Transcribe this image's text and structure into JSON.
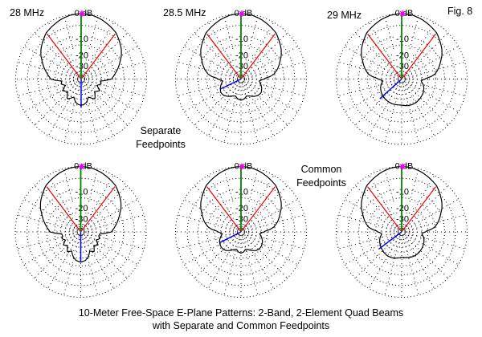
{
  "figure_label": "Fig. 8",
  "row_labels": {
    "separate": [
      "Separate",
      "Feedpoints"
    ],
    "common": [
      "Common",
      "Feedpoints"
    ]
  },
  "caption": [
    "10-Meter Free-Space E-Plane Patterns: 2-Band, 2-Element Quad Beams",
    "with Separate and Common Feedpoints"
  ],
  "colors": {
    "trace": "#000000",
    "grid": "#000000",
    "main_axis": "#008000",
    "cursor": "#0000ff",
    "beamwidth": "#ee0000",
    "marker": "#ee00ee",
    "label_bg": "#ffffff",
    "text": "#000000"
  },
  "grid": {
    "ring_dB": [
      0,
      -5,
      -10,
      -15,
      -20,
      -25,
      -30,
      -35,
      -40,
      -45,
      -50
    ],
    "spoke_step_deg": 15,
    "ring_labels": [
      {
        "dB": 0,
        "text": "0 dB"
      },
      {
        "dB": -10,
        "text": "-10"
      },
      {
        "dB": -20,
        "text": "-20"
      },
      {
        "dB": -30,
        "text": "-30"
      }
    ],
    "scale_entries": [
      [
        0,
        1.0
      ],
      [
        -5,
        0.82
      ],
      [
        -10,
        0.655
      ],
      [
        -15,
        0.52
      ],
      [
        -20,
        0.4
      ],
      [
        -25,
        0.31
      ],
      [
        -30,
        0.235
      ],
      [
        -35,
        0.17
      ],
      [
        -40,
        0.12
      ],
      [
        -45,
        0.08
      ],
      [
        -50,
        0.05
      ],
      [
        -60,
        0.02
      ]
    ]
  },
  "chart_data": {
    "type": "line",
    "projection": "polar",
    "units": "dB relative to max gain",
    "angle_convention": "0 deg = boresight (up), clockwise positive",
    "plots": [
      {
        "id": "28mhz-separate",
        "title": "28 MHz",
        "feedpoints": "Separate",
        "center": [
          101,
          98.5
        ],
        "radius": 81.5,
        "mirror": true,
        "beamwidth_marker": {
          "angles_deg": [
            -37,
            37
          ],
          "r_frac": 0.866
        },
        "cursor": {
          "angle_deg": 180,
          "r_frac": 0.44
        },
        "pattern": [
          [
            0,
            0
          ],
          [
            10,
            -0.3
          ],
          [
            20,
            -1.2
          ],
          [
            30,
            -2.4
          ],
          [
            37,
            -3.2
          ],
          [
            45,
            -4.9
          ],
          [
            53,
            -6.6
          ],
          [
            60,
            -8.4
          ],
          [
            68,
            -10.8
          ],
          [
            75,
            -13
          ],
          [
            81,
            -14.8
          ],
          [
            87,
            -16.6
          ],
          [
            90,
            -17.3
          ],
          [
            93,
            -21
          ],
          [
            96,
            -26
          ],
          [
            104,
            -24.8
          ],
          [
            112,
            -28.5
          ],
          [
            122,
            -23.6
          ],
          [
            133,
            -27
          ],
          [
            145,
            -21.8
          ],
          [
            158,
            -25.8
          ],
          [
            167,
            -22
          ],
          [
            174,
            -20.4
          ],
          [
            180,
            -20
          ]
        ]
      },
      {
        "id": "28p5mhz-separate",
        "title": "28.5 MHz",
        "feedpoints": "Separate",
        "center": [
          300,
          98.5
        ],
        "radius": 81.5,
        "mirror": true,
        "beamwidth_marker": {
          "angles_deg": [
            -37,
            37
          ],
          "r_frac": 0.866
        },
        "cursor": {
          "angle_deg": 244,
          "r_frac": 0.36
        },
        "pattern": [
          [
            0,
            0
          ],
          [
            10,
            -0.3
          ],
          [
            20,
            -1.2
          ],
          [
            30,
            -2.4
          ],
          [
            37,
            -3.2
          ],
          [
            45,
            -4.9
          ],
          [
            53,
            -6.6
          ],
          [
            60,
            -8.4
          ],
          [
            68,
            -10.8
          ],
          [
            75,
            -13
          ],
          [
            81,
            -15.3
          ],
          [
            85,
            -18
          ],
          [
            88,
            -21.5
          ],
          [
            90,
            -22.5
          ],
          [
            92,
            -24.5
          ],
          [
            96,
            -27
          ],
          [
            104,
            -25
          ],
          [
            114,
            -23
          ],
          [
            124,
            -21.6
          ],
          [
            134,
            -22.2
          ],
          [
            144,
            -24
          ],
          [
            154,
            -26.5
          ],
          [
            162,
            -27.5
          ],
          [
            171,
            -25.2
          ],
          [
            180,
            -24.2
          ]
        ]
      },
      {
        "id": "29mhz-separate",
        "title": "29 MHz",
        "feedpoints": "Separate",
        "center": [
          500,
          98.5
        ],
        "radius": 81.5,
        "mirror": false,
        "beamwidth_marker": {
          "angles_deg": [
            -37,
            37
          ],
          "r_frac": 0.866
        },
        "cursor": {
          "angle_deg": 228,
          "r_frac": 0.45
        },
        "pattern": [
          [
            -180,
            -20
          ],
          [
            -176,
            -20.1
          ],
          [
            -169,
            -20
          ],
          [
            -159,
            -19.8
          ],
          [
            -147,
            -20
          ],
          [
            -135,
            -20.6
          ],
          [
            -123,
            -21.6
          ],
          [
            -113,
            -22.8
          ],
          [
            -104,
            -24.3
          ],
          [
            -96,
            -26.5
          ],
          [
            -92,
            -24.3
          ],
          [
            -90,
            -22.3
          ],
          [
            -88,
            -21
          ],
          [
            -85,
            -17.8
          ],
          [
            -81,
            -15
          ],
          [
            -75,
            -13
          ],
          [
            -68,
            -10.8
          ],
          [
            -60,
            -8.4
          ],
          [
            -53,
            -6.6
          ],
          [
            -45,
            -4.9
          ],
          [
            -37,
            -3.2
          ],
          [
            -30,
            -2.4
          ],
          [
            -20,
            -1.2
          ],
          [
            -10,
            -0.3
          ],
          [
            0,
            0
          ],
          [
            10,
            -0.3
          ],
          [
            20,
            -1.2
          ],
          [
            30,
            -2.4
          ],
          [
            37,
            -3.2
          ],
          [
            45,
            -4.9
          ],
          [
            53,
            -6.6
          ],
          [
            60,
            -8.4
          ],
          [
            68,
            -10.8
          ],
          [
            75,
            -13
          ],
          [
            81,
            -15
          ],
          [
            85,
            -17.8
          ],
          [
            88,
            -21
          ],
          [
            90,
            -22.3
          ],
          [
            92,
            -24
          ],
          [
            96,
            -25.8
          ],
          [
            104,
            -23.4
          ],
          [
            113,
            -21.8
          ],
          [
            123,
            -20.5
          ],
          [
            135,
            -19.7
          ],
          [
            147,
            -19.2
          ],
          [
            159,
            -19.1
          ],
          [
            169,
            -19.4
          ],
          [
            176,
            -19.8
          ],
          [
            180,
            -20
          ]
        ]
      },
      {
        "id": "28mhz-common",
        "title": "28 MHz",
        "feedpoints": "Common",
        "center": [
          100.5,
          289
        ],
        "radius": 81.5,
        "mirror": true,
        "beamwidth_marker": {
          "angles_deg": [
            -37,
            37
          ],
          "r_frac": 0.866
        },
        "cursor": {
          "angle_deg": 180,
          "r_frac": 0.455
        },
        "pattern": [
          [
            0,
            0
          ],
          [
            10,
            -0.3
          ],
          [
            20,
            -1.2
          ],
          [
            30,
            -2.4
          ],
          [
            37,
            -3.2
          ],
          [
            45,
            -4.9
          ],
          [
            53,
            -6.6
          ],
          [
            60,
            -8.4
          ],
          [
            68,
            -10.8
          ],
          [
            75,
            -12.9
          ],
          [
            81,
            -14.6
          ],
          [
            87,
            -16.4
          ],
          [
            90,
            -17.1
          ],
          [
            93,
            -21
          ],
          [
            96,
            -26.2
          ],
          [
            103,
            -26.8
          ],
          [
            110,
            -25.4
          ],
          [
            118,
            -28
          ],
          [
            127,
            -23.8
          ],
          [
            136,
            -26.3
          ],
          [
            146,
            -22
          ],
          [
            155,
            -24.3
          ],
          [
            163,
            -20.2
          ],
          [
            171,
            -18.2
          ],
          [
            180,
            -17.4
          ]
        ]
      },
      {
        "id": "28p5mhz-common",
        "title": "28.5 MHz",
        "feedpoints": "Common",
        "center": [
          300,
          289
        ],
        "radius": 81.5,
        "mirror": true,
        "beamwidth_marker": {
          "angles_deg": [
            -37,
            37
          ],
          "r_frac": 0.866
        },
        "cursor": {
          "angle_deg": 243,
          "r_frac": 0.36
        },
        "pattern": [
          [
            0,
            0
          ],
          [
            10,
            -0.3
          ],
          [
            20,
            -1.2
          ],
          [
            30,
            -2.4
          ],
          [
            37,
            -3.2
          ],
          [
            45,
            -4.9
          ],
          [
            53,
            -6.6
          ],
          [
            60,
            -8.4
          ],
          [
            68,
            -10.8
          ],
          [
            75,
            -13
          ],
          [
            81,
            -15.3
          ],
          [
            85,
            -18
          ],
          [
            88,
            -21.5
          ],
          [
            90,
            -22.6
          ],
          [
            92,
            -24.5
          ],
          [
            96,
            -26.5
          ],
          [
            104,
            -24.3
          ],
          [
            114,
            -22.3
          ],
          [
            124,
            -21.2
          ],
          [
            132,
            -21
          ],
          [
            141,
            -21.9
          ],
          [
            150,
            -24
          ],
          [
            158,
            -26.3
          ],
          [
            166,
            -27.3
          ],
          [
            173,
            -25
          ],
          [
            180,
            -24.2
          ]
        ]
      },
      {
        "id": "29mhz-common",
        "title": "29 MHz",
        "feedpoints": "Common",
        "center": [
          500,
          289
        ],
        "radius": 81.5,
        "mirror": false,
        "beamwidth_marker": {
          "angles_deg": [
            -37,
            37
          ],
          "r_frac": 0.866
        },
        "cursor": {
          "angle_deg": 233,
          "r_frac": 0.44
        },
        "pattern": [
          [
            -180,
            -20.6
          ],
          [
            -172,
            -19.9
          ],
          [
            -162,
            -19.2
          ],
          [
            -150,
            -18.9
          ],
          [
            -138,
            -19.4
          ],
          [
            -126,
            -20.4
          ],
          [
            -114,
            -21.8
          ],
          [
            -104,
            -23.4
          ],
          [
            -96,
            -25.3
          ],
          [
            -92,
            -23.8
          ],
          [
            -90,
            -22
          ],
          [
            -88,
            -21
          ],
          [
            -85,
            -17.8
          ],
          [
            -81,
            -15
          ],
          [
            -75,
            -13
          ],
          [
            -68,
            -10.8
          ],
          [
            -60,
            -8.4
          ],
          [
            -53,
            -6.6
          ],
          [
            -45,
            -4.9
          ],
          [
            -37,
            -3.2
          ],
          [
            -30,
            -2.4
          ],
          [
            -20,
            -1.2
          ],
          [
            -10,
            -0.3
          ],
          [
            0,
            0
          ],
          [
            10,
            -0.3
          ],
          [
            20,
            -1.2
          ],
          [
            30,
            -2.4
          ],
          [
            37,
            -3.2
          ],
          [
            45,
            -4.9
          ],
          [
            53,
            -6.6
          ],
          [
            60,
            -8.4
          ],
          [
            68,
            -10.8
          ],
          [
            75,
            -13
          ],
          [
            81,
            -15
          ],
          [
            85,
            -17.8
          ],
          [
            88,
            -21
          ],
          [
            90,
            -22
          ],
          [
            92,
            -23.8
          ],
          [
            96,
            -25
          ],
          [
            104,
            -23
          ],
          [
            114,
            -21.5
          ],
          [
            126,
            -20.3
          ],
          [
            138,
            -19.6
          ],
          [
            150,
            -19.3
          ],
          [
            162,
            -19.6
          ],
          [
            172,
            -20.2
          ],
          [
            180,
            -20.6
          ]
        ]
      }
    ]
  }
}
